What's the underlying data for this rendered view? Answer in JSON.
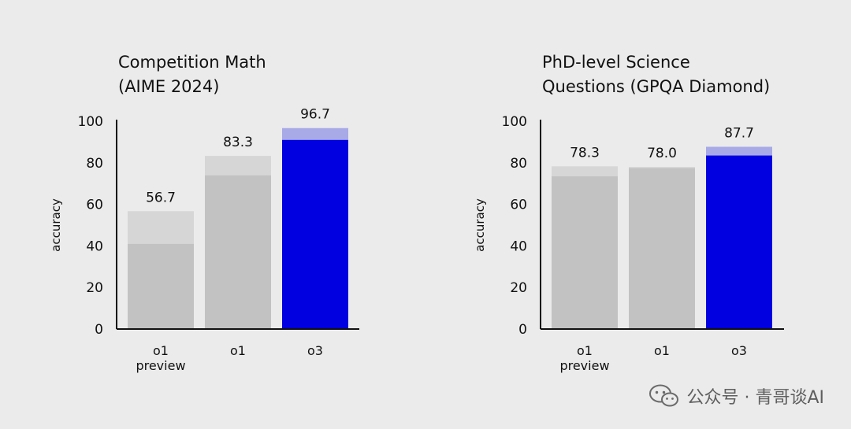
{
  "colors": {
    "gray_base": "#c2c2c2",
    "gray_top": "#d6d6d6",
    "blue_base": "#0000e0",
    "blue_top": "#a7aae6",
    "axis": "#111111"
  },
  "watermark": {
    "text": "公众号 · 青哥谈AI",
    "icon": "wechat-icon"
  },
  "chart_data": [
    {
      "type": "bar",
      "title_lines": [
        "Competition Math",
        "(AIME 2024)"
      ],
      "ylabel": "accuracy",
      "ylim": [
        0,
        100
      ],
      "yticks": [
        0,
        20,
        40,
        60,
        80,
        100
      ],
      "categories": [
        [
          "o1",
          "preview"
        ],
        [
          "o1"
        ],
        [
          "o3"
        ]
      ],
      "series": [
        {
          "values": [
            41,
            74,
            91
          ]
        },
        {
          "values": [
            56.7,
            83.3,
            96.7
          ]
        }
      ],
      "value_labels": [
        "56.7",
        "83.3",
        "96.7"
      ],
      "highlight_index": 2
    },
    {
      "type": "bar",
      "title_lines": [
        "PhD-level Science",
        "Questions (GPQA Diamond)"
      ],
      "ylabel": "accuracy",
      "ylim": [
        0,
        100
      ],
      "yticks": [
        0,
        20,
        40,
        60,
        80,
        100
      ],
      "categories": [
        [
          "o1",
          "preview"
        ],
        [
          "o1"
        ],
        [
          "o3"
        ]
      ],
      "series": [
        {
          "values": [
            73.5,
            77.5,
            83.5
          ]
        },
        {
          "values": [
            78.3,
            78.0,
            87.7
          ]
        }
      ],
      "value_labels": [
        "78.3",
        "78.0",
        "87.7"
      ],
      "highlight_index": 2
    }
  ]
}
